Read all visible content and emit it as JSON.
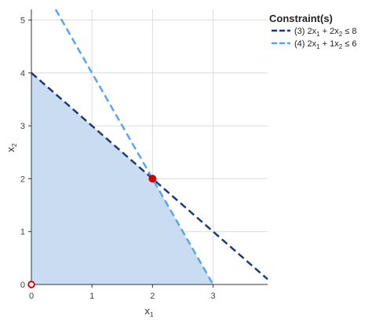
{
  "chart_data": {
    "type": "line",
    "xlabel": {
      "main": "x",
      "sub": "1"
    },
    "ylabel": {
      "main": "x",
      "sub": "2"
    },
    "xlim": [
      0,
      3.9
    ],
    "ylim": [
      0,
      5.2
    ],
    "x_ticks": [
      0,
      1,
      2,
      3
    ],
    "y_ticks": [
      0,
      1,
      2,
      3,
      4,
      5
    ],
    "grid": true,
    "legend": {
      "title": "Constraint(s)",
      "placement": "right",
      "entries": [
        {
          "prefix": "(3) 2x",
          "s1": "1",
          "mid": " + 2x",
          "s2": "2",
          "suffix": " ≤ 8"
        },
        {
          "prefix": "(4) 2x",
          "s1": "1",
          "mid": " + 1x",
          "s2": "2",
          "suffix": " ≤ 6"
        }
      ]
    },
    "series": [
      {
        "line": "(3)",
        "coefficients": [
          2,
          2
        ],
        "rhs": 8,
        "color": "#1a3a7a",
        "dashed": true
      },
      {
        "line": "(4)",
        "coefficients": [
          2,
          1
        ],
        "rhs": 6,
        "color": "#5aa5ea",
        "dashed": true
      }
    ],
    "feasible_region": {
      "vertices": [
        [
          0,
          0
        ],
        [
          0,
          4
        ],
        [
          2,
          2
        ],
        [
          3,
          0
        ]
      ],
      "fill": "#c9dcf1"
    },
    "points": [
      {
        "x": 2,
        "y": 2,
        "style": "filled",
        "color": "#cc0000"
      },
      {
        "x": 0,
        "y": 0,
        "style": "hollow",
        "color": "#cc0000"
      }
    ]
  }
}
